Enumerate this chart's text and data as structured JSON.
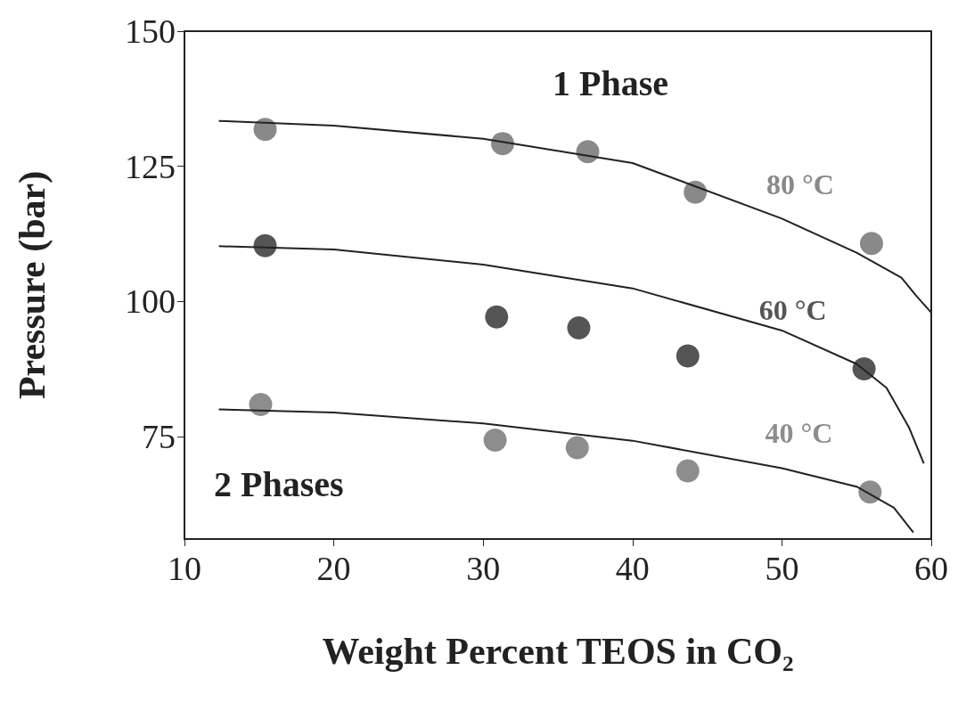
{
  "chart_data": {
    "type": "scatter",
    "xlabel": "Weight Percent TEOS in CO₂",
    "ylabel": "Pressure (bar)",
    "xlim": [
      10,
      60
    ],
    "xticks": [
      10,
      20,
      30,
      40,
      50,
      60
    ],
    "ylim": [
      56,
      150
    ],
    "yticks": [
      75,
      100,
      125,
      150
    ],
    "grid": false,
    "legend": false,
    "annotations": [
      "1 Phase",
      "2 Phases"
    ],
    "series": [
      {
        "name": "80 °C",
        "marker": "circle",
        "color": "#6b6b6b",
        "x": [
          15.4,
          31.3,
          37.0,
          44.2,
          56.0
        ],
        "values": [
          131.8,
          129.2,
          127.7,
          120.2,
          110.7
        ]
      },
      {
        "name": "60 °C",
        "marker": "circle",
        "color": "#2b2b2b",
        "x": [
          15.4,
          30.9,
          36.4,
          43.7,
          55.5
        ],
        "values": [
          110.3,
          97.1,
          95.1,
          89.9,
          87.5
        ]
      },
      {
        "name": "40 °C",
        "marker": "circle",
        "color": "#707070",
        "x": [
          15.1,
          30.8,
          36.3,
          43.7,
          55.9
        ],
        "values": [
          80.9,
          74.3,
          72.9,
          68.6,
          64.7
        ]
      },
      {
        "type": "line",
        "marker": "none",
        "color": "#222222",
        "x": [
          12.3,
          20,
          30,
          40,
          50,
          55,
          58,
          59,
          60
        ],
        "values": [
          133.4,
          132.5,
          130.1,
          125.6,
          115.3,
          109,
          104.4,
          101,
          97.9
        ]
      },
      {
        "type": "line",
        "marker": "none",
        "color": "#222222",
        "x": [
          12.3,
          20,
          30,
          40,
          50,
          55,
          57,
          58.5,
          59.5
        ],
        "values": [
          110.2,
          109.6,
          106.8,
          102.4,
          94.6,
          88.4,
          84,
          76.7,
          70
        ]
      },
      {
        "type": "line",
        "marker": "none",
        "color": "#222222",
        "x": [
          12.3,
          20,
          30,
          40,
          50,
          55,
          57.5,
          58.8
        ],
        "values": [
          80,
          79.4,
          77.4,
          74.2,
          69.1,
          65.7,
          61.8,
          57.2
        ]
      }
    ]
  }
}
